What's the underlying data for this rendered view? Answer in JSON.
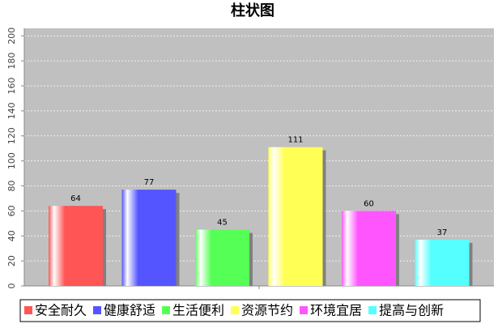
{
  "chart_data": {
    "type": "bar",
    "title": "柱状图",
    "categories": [
      null
    ],
    "series": [
      {
        "name": "安全耐久",
        "color": "#ff5555",
        "values": [
          64
        ]
      },
      {
        "name": "健康舒适",
        "color": "#5555ff",
        "values": [
          77
        ]
      },
      {
        "name": "生活便利",
        "color": "#55ff55",
        "values": [
          45
        ]
      },
      {
        "name": "资源节约",
        "color": "#ffff55",
        "values": [
          111
        ]
      },
      {
        "name": "环境宜居",
        "color": "#ff55ff",
        "values": [
          60
        ]
      },
      {
        "name": "提高与创新",
        "color": "#55ffff",
        "values": [
          37
        ]
      }
    ],
    "ylim": [
      0,
      206
    ],
    "yticks": [
      0,
      20,
      40,
      60,
      80,
      100,
      120,
      140,
      160,
      180,
      200
    ],
    "grid": true,
    "legend": "bottom"
  }
}
